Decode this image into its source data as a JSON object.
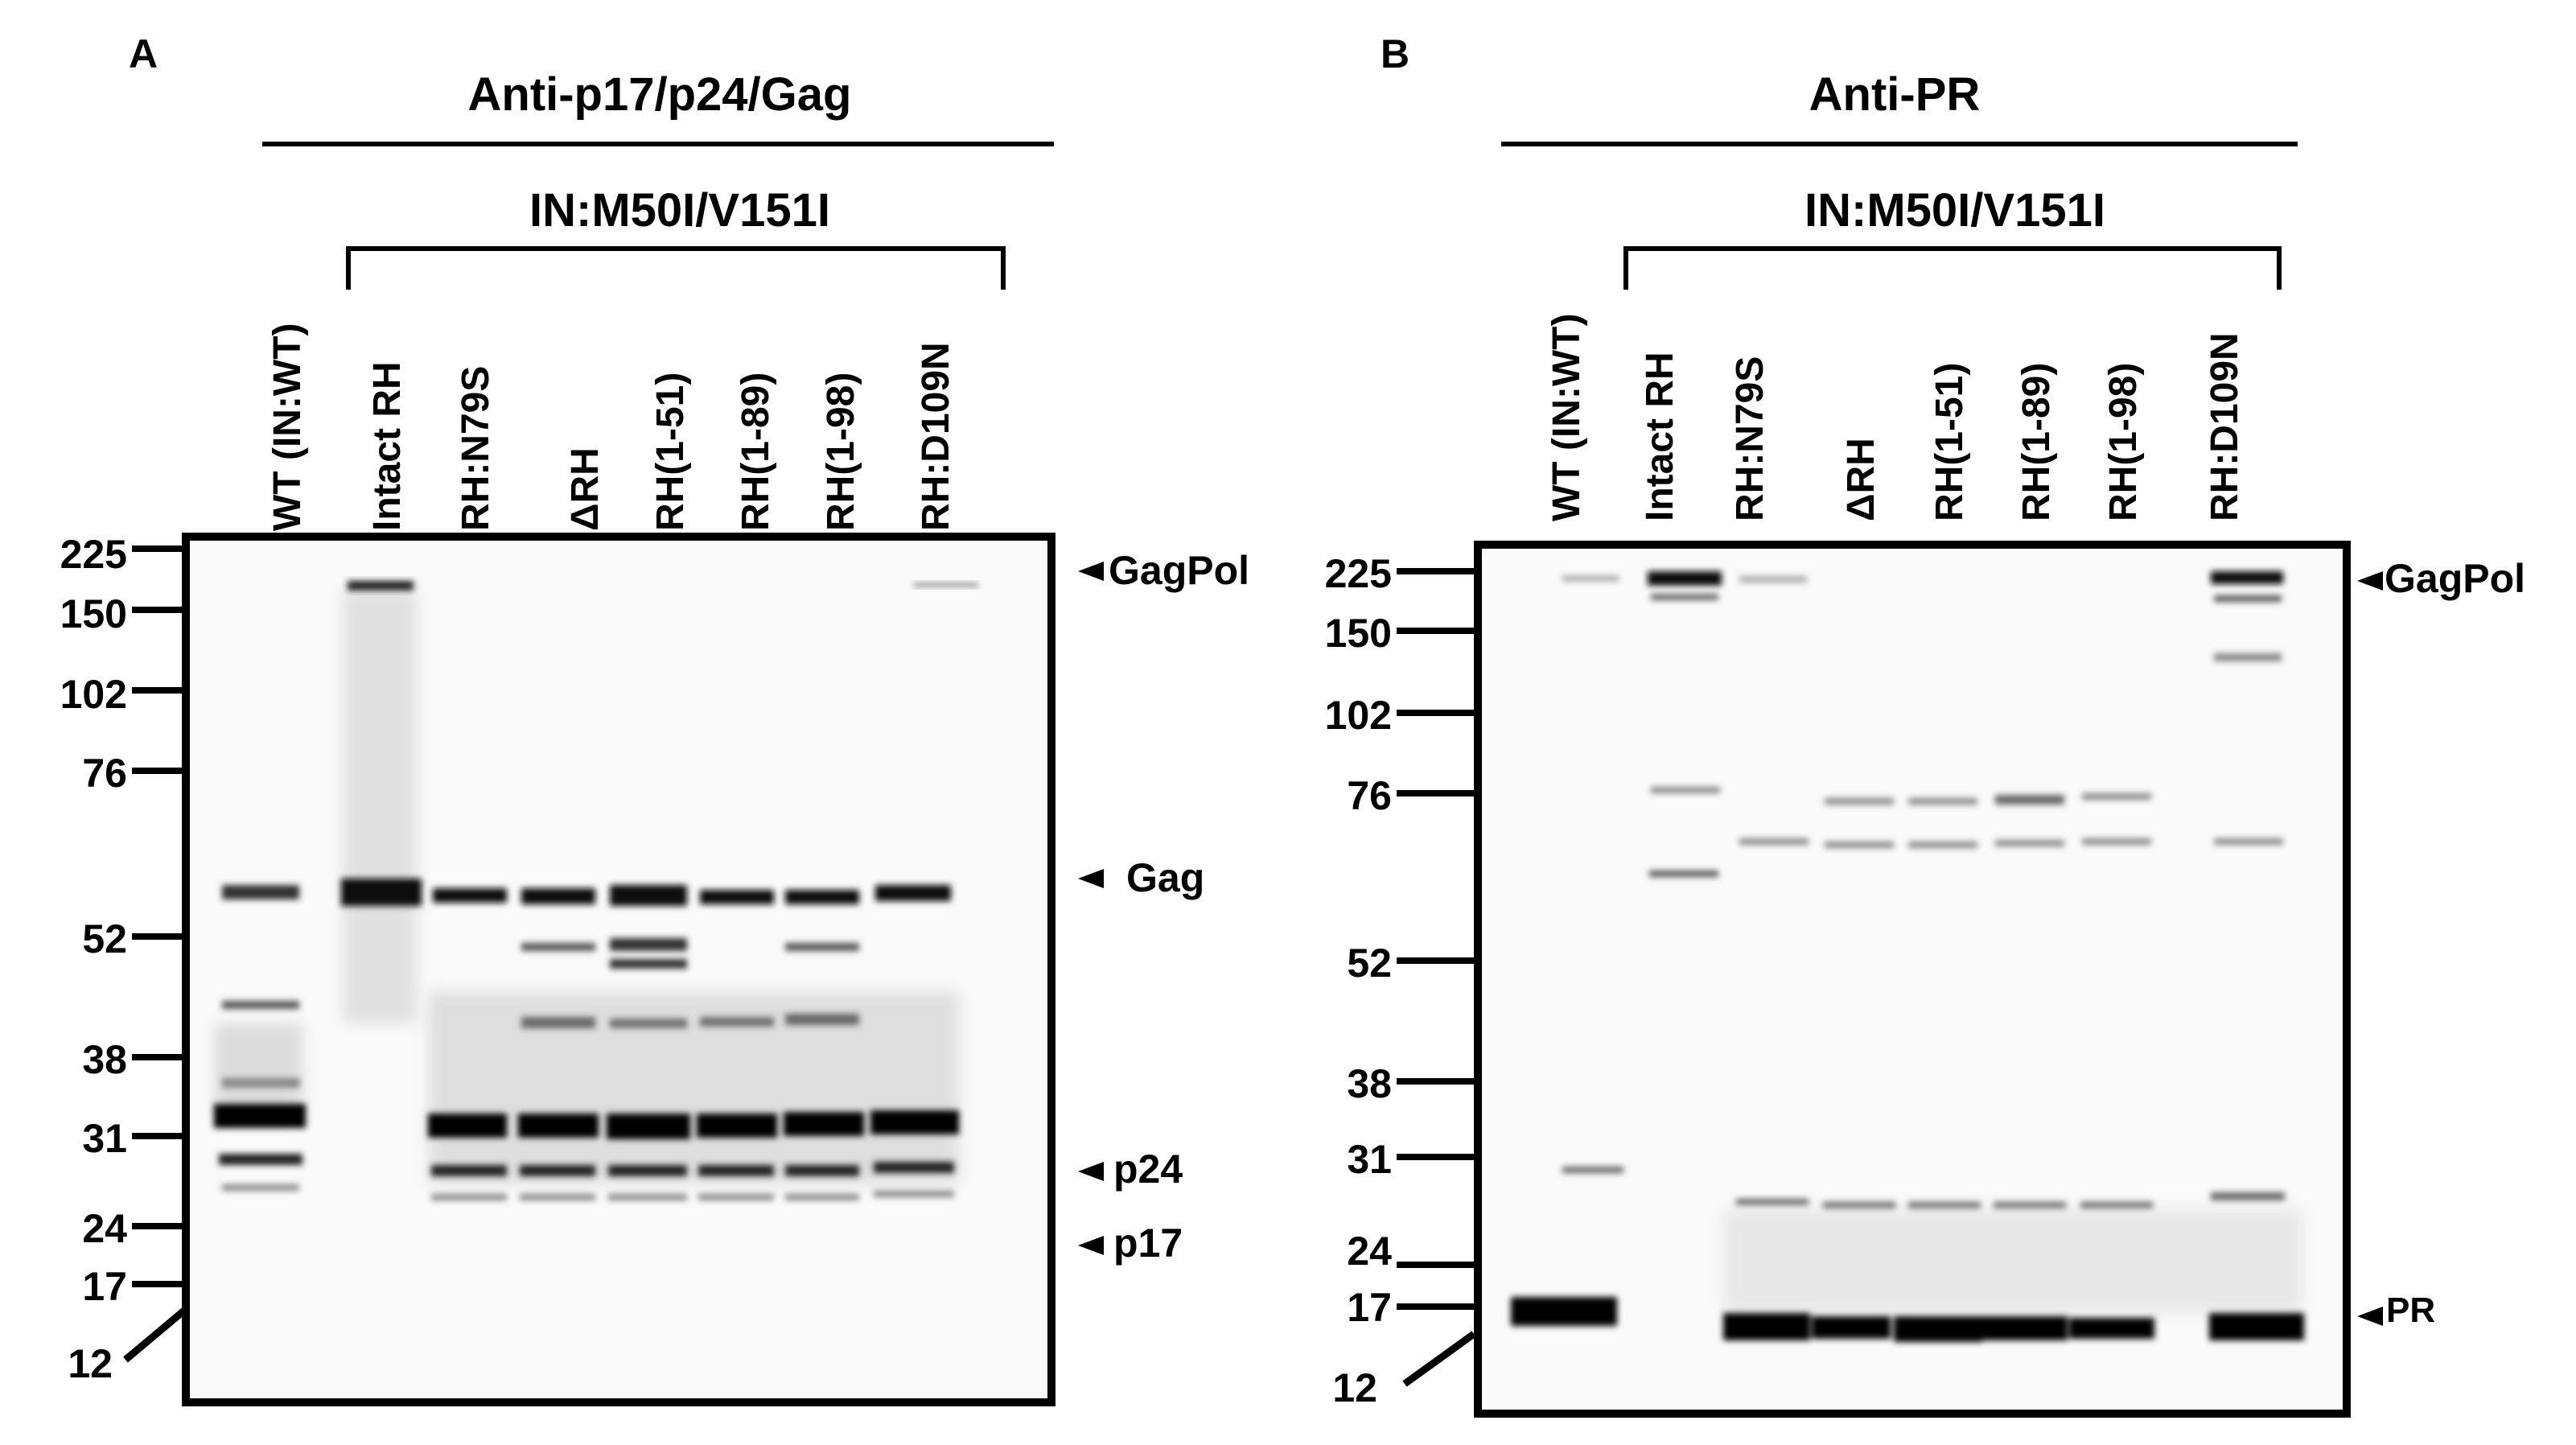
{
  "panels": [
    {
      "letter": "A",
      "antibody": "Anti-p17/p24/Gag",
      "group_label": "IN:M50I/V151I",
      "lanes": [
        "WT (IN:WT)",
        "Intact RH",
        "RH:N79S",
        "ΔRH",
        "RH(1-51)",
        "RH(1-89)",
        "RH(1-98)",
        "RH:D109N"
      ],
      "markers": [
        "225",
        "150",
        "102",
        "76",
        "52",
        "38",
        "31",
        "24",
        "17",
        "12"
      ],
      "annotations": [
        "GagPol",
        "Gag",
        "p24",
        "p17"
      ]
    },
    {
      "letter": "B",
      "antibody": "Anti-PR",
      "group_label": "IN:M50I/V151I",
      "lanes": [
        "WT (IN:WT)",
        "Intact RH",
        "RH:N79S",
        "ΔRH",
        "RH(1-51)",
        "RH(1-89)",
        "RH(1-98)",
        "RH:D109N"
      ],
      "markers": [
        "225",
        "150",
        "102",
        "76",
        "52",
        "38",
        "31",
        "24",
        "17",
        "12"
      ],
      "annotations": [
        "GagPol",
        "PR"
      ]
    }
  ],
  "colors": {
    "band": "#000000",
    "background": "#ffffff",
    "smear": "#9a9a9a"
  }
}
